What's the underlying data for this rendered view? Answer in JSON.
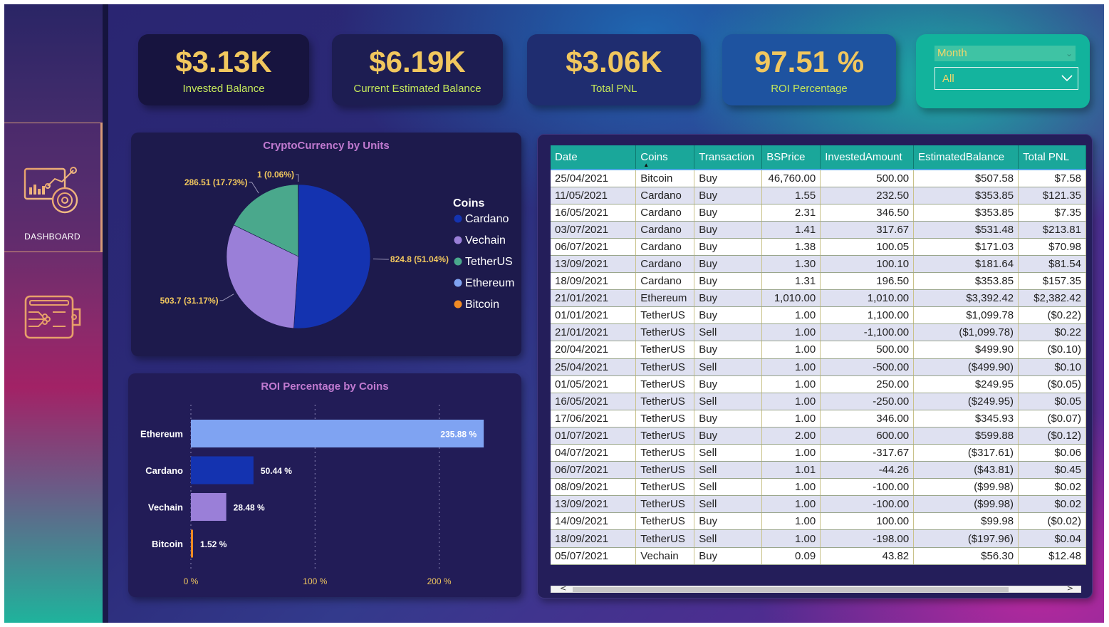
{
  "sidebar": {
    "items": [
      {
        "label": "DASHBOARD",
        "icon": "analytics-dashboard-icon"
      },
      {
        "icon": "wallet-icon"
      }
    ],
    "accent": "#d79a78"
  },
  "kpis": {
    "invested": {
      "value": "$3.13K",
      "label": "Invested Balance"
    },
    "current": {
      "value": "$6.19K",
      "label": "Current Estimated Balance"
    },
    "pnl": {
      "value": "$3.06K",
      "label": "Total PNL"
    },
    "roi": {
      "value": "97.51 %",
      "label": "ROI Percentage"
    }
  },
  "slicer": {
    "header": "Month",
    "selected": "All"
  },
  "pie_title": "CryptoCurrency by Units",
  "bar_title": "ROI Percentage by Coins",
  "legend_title": "Coins",
  "colors": {
    "Cardano": "#1433b0",
    "Vechain": "#9a7fd8",
    "TetherUS": "#4aa88c",
    "Ethereum": "#7fa3f2",
    "Bitcoin": "#f08a24",
    "kpi_value": "#f1c75e",
    "kpi_label": "#c5e85a",
    "table_header": "#1aa79a"
  },
  "chart_data": [
    {
      "type": "pie",
      "title": "CryptoCurrency by Units",
      "legend_title": "Coins",
      "legend_position": "right",
      "categories": [
        "Cardano",
        "Vechain",
        "TetherUS",
        "Ethereum",
        "Bitcoin"
      ],
      "values": [
        824.8,
        503.7,
        286.51,
        1,
        0.0
      ],
      "labels": [
        "824.8 (51.04%)",
        "503.7 (31.17%)",
        "286.51 (17.73%)",
        "1 (0.06%)",
        ""
      ]
    },
    {
      "type": "bar",
      "orientation": "horizontal",
      "title": "ROI Percentage by Coins",
      "categories": [
        "Ethereum",
        "Cardano",
        "Vechain",
        "Bitcoin"
      ],
      "values": [
        235.88,
        50.44,
        28.48,
        1.52
      ],
      "labels": [
        "235.88 %",
        "50.44 %",
        "28.48 %",
        "1.52 %"
      ],
      "xlim": [
        0,
        235.88
      ],
      "xticks": [
        0,
        100,
        200
      ],
      "xtick_labels": [
        "0 %",
        "100 %",
        "200 %"
      ],
      "grid": true
    }
  ],
  "table": {
    "columns": [
      "Date",
      "Coins",
      "Transaction",
      "BSPrice",
      "InvestedAmount",
      "EstimatedBalance",
      "Total PNL"
    ],
    "sorted_column": "Coins",
    "rows": [
      [
        "25/04/2021",
        "Bitcoin",
        "Buy",
        "46,760.00",
        "500.00",
        "$507.58",
        "$7.58"
      ],
      [
        "11/05/2021",
        "Cardano",
        "Buy",
        "1.55",
        "232.50",
        "$353.85",
        "$121.35"
      ],
      [
        "16/05/2021",
        "Cardano",
        "Buy",
        "2.31",
        "346.50",
        "$353.85",
        "$7.35"
      ],
      [
        "03/07/2021",
        "Cardano",
        "Buy",
        "1.41",
        "317.67",
        "$531.48",
        "$213.81"
      ],
      [
        "06/07/2021",
        "Cardano",
        "Buy",
        "1.38",
        "100.05",
        "$171.03",
        "$70.98"
      ],
      [
        "13/09/2021",
        "Cardano",
        "Buy",
        "1.30",
        "100.10",
        "$181.64",
        "$81.54"
      ],
      [
        "18/09/2021",
        "Cardano",
        "Buy",
        "1.31",
        "196.50",
        "$353.85",
        "$157.35"
      ],
      [
        "21/01/2021",
        "Ethereum",
        "Buy",
        "1,010.00",
        "1,010.00",
        "$3,392.42",
        "$2,382.42"
      ],
      [
        "01/01/2021",
        "TetherUS",
        "Buy",
        "1.00",
        "1,100.00",
        "$1,099.78",
        "($0.22)"
      ],
      [
        "21/01/2021",
        "TetherUS",
        "Sell",
        "1.00",
        "-1,100.00",
        "($1,099.78)",
        "$0.22"
      ],
      [
        "20/04/2021",
        "TetherUS",
        "Buy",
        "1.00",
        "500.00",
        "$499.90",
        "($0.10)"
      ],
      [
        "25/04/2021",
        "TetherUS",
        "Sell",
        "1.00",
        "-500.00",
        "($499.90)",
        "$0.10"
      ],
      [
        "01/05/2021",
        "TetherUS",
        "Buy",
        "1.00",
        "250.00",
        "$249.95",
        "($0.05)"
      ],
      [
        "16/05/2021",
        "TetherUS",
        "Sell",
        "1.00",
        "-250.00",
        "($249.95)",
        "$0.05"
      ],
      [
        "17/06/2021",
        "TetherUS",
        "Buy",
        "1.00",
        "346.00",
        "$345.93",
        "($0.07)"
      ],
      [
        "01/07/2021",
        "TetherUS",
        "Buy",
        "2.00",
        "600.00",
        "$599.88",
        "($0.12)"
      ],
      [
        "04/07/2021",
        "TetherUS",
        "Sell",
        "1.00",
        "-317.67",
        "($317.61)",
        "$0.06"
      ],
      [
        "06/07/2021",
        "TetherUS",
        "Sell",
        "1.01",
        "-44.26",
        "($43.81)",
        "$0.45"
      ],
      [
        "08/09/2021",
        "TetherUS",
        "Sell",
        "1.00",
        "-100.00",
        "($99.98)",
        "$0.02"
      ],
      [
        "13/09/2021",
        "TetherUS",
        "Sell",
        "1.00",
        "-100.00",
        "($99.98)",
        "$0.02"
      ],
      [
        "14/09/2021",
        "TetherUS",
        "Buy",
        "1.00",
        "100.00",
        "$99.98",
        "($0.02)"
      ],
      [
        "18/09/2021",
        "TetherUS",
        "Sell",
        "1.00",
        "-198.00",
        "($197.96)",
        "$0.04"
      ],
      [
        "05/07/2021",
        "Vechain",
        "Buy",
        "0.09",
        "43.82",
        "$56.30",
        "$12.48"
      ]
    ]
  },
  "scrollbar": {
    "left": "<",
    "right": ">"
  }
}
